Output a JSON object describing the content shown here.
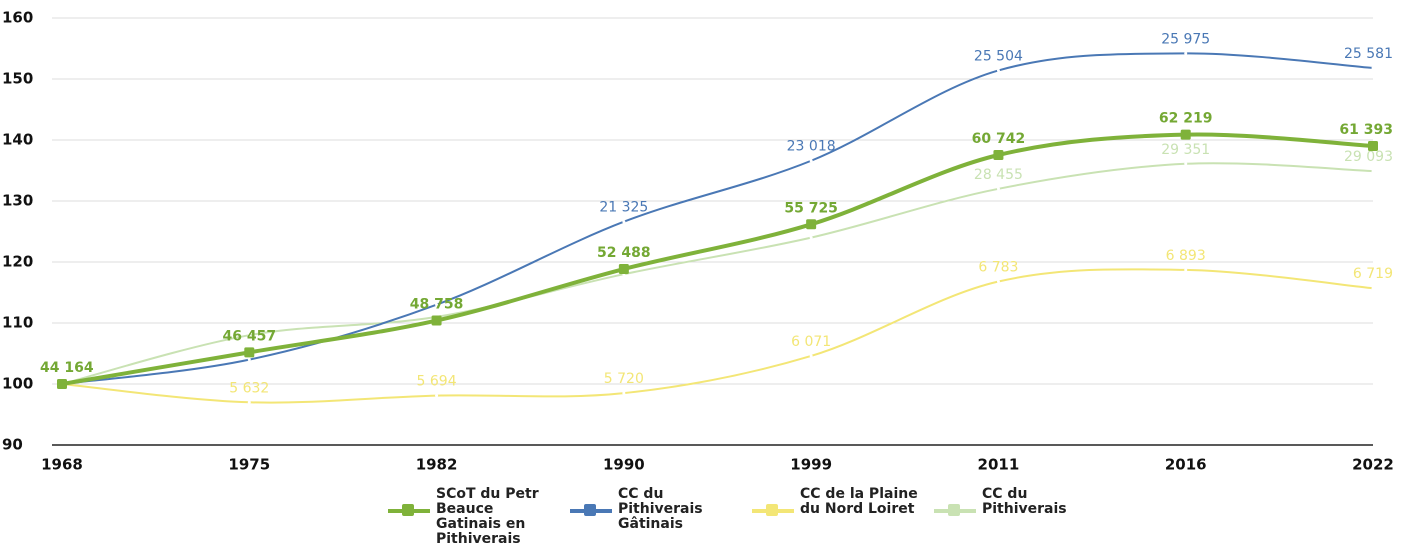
{
  "chart_data": {
    "type": "line",
    "categories": [
      "1968",
      "1975",
      "1982",
      "1990",
      "1999",
      "2011",
      "2016",
      "2022"
    ],
    "ylim": [
      90,
      160
    ],
    "yticks": [
      90,
      100,
      110,
      120,
      130,
      140,
      150,
      160
    ],
    "grid": true,
    "legend": "bottom",
    "series": [
      {
        "name": "CC du Pithiverais",
        "color": "#c9e2b3",
        "values": [
          100,
          108,
          111,
          118,
          124,
          132.0,
          136.1,
          134.9
        ],
        "value_labels": [
          null,
          null,
          null,
          null,
          null,
          "28 455",
          "29 351",
          "29 093"
        ]
      },
      {
        "name": "CC de la Plaine du Nord Loiret",
        "color": "#f3e676",
        "values": [
          100,
          97.0,
          98.1,
          98.5,
          104.6,
          116.8,
          118.7,
          115.7
        ],
        "value_labels": [
          null,
          "5 632",
          "5 694",
          "5 720",
          "6 071",
          "6 783",
          "6 893",
          "6 719"
        ]
      },
      {
        "name": "CC du Pithiverais Gâtinais",
        "color": "#4a78b5",
        "values": [
          100,
          104,
          113,
          126.6,
          136.6,
          151.4,
          154.2,
          151.8
        ],
        "value_labels": [
          null,
          null,
          null,
          "21 325",
          "23 018",
          "25 504",
          "25 975",
          "25 581"
        ]
      },
      {
        "name": "SCoT du Petr Beauce Gatinais en Pithiverais",
        "color": "#7fb23a",
        "values": [
          100,
          105.19,
          110.4,
          118.85,
          126.18,
          137.54,
          140.88,
          139.01
        ],
        "value_labels": [
          "44 164",
          "46 457",
          "48 758",
          "52 488",
          "55 725",
          "60 742",
          "62 219",
          "61 393"
        ]
      }
    ]
  }
}
